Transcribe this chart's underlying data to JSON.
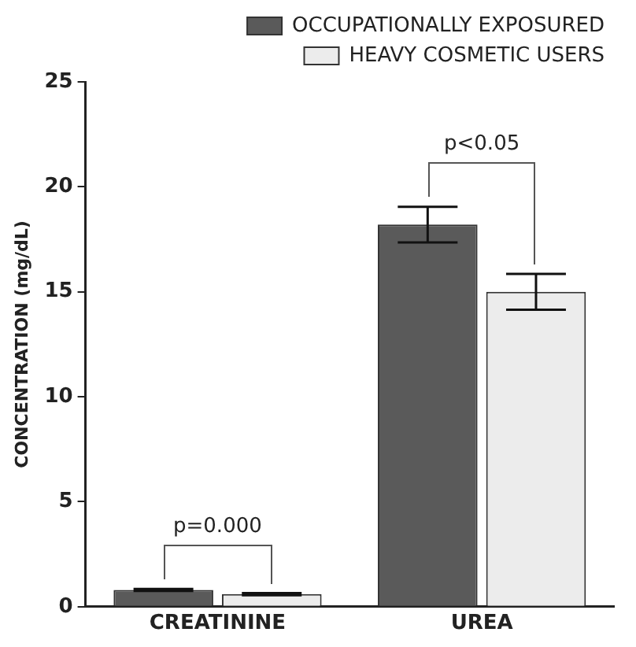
{
  "chart_data": {
    "type": "bar",
    "ylabel": "CONCENTRATION (mg/dL)",
    "categories": [
      "CREATININE",
      "UREA"
    ],
    "series": [
      {
        "name": "OCCUPATIONALLY EXPOSURED",
        "color": "#5a5a5a",
        "values": [
          0.8,
          18.2
        ],
        "errors": [
          0.05,
          0.85
        ]
      },
      {
        "name": "HEAVY COSMETIC USERS",
        "color": "#ececec",
        "values": [
          0.6,
          15.0
        ],
        "errors": [
          0.05,
          0.85
        ]
      }
    ],
    "ylim": [
      0,
      25
    ],
    "yticks": [
      0,
      5,
      10,
      15,
      20,
      25
    ],
    "grid": false,
    "legend": "top",
    "annotations": [
      "p=0.000",
      "p<0.05"
    ]
  }
}
